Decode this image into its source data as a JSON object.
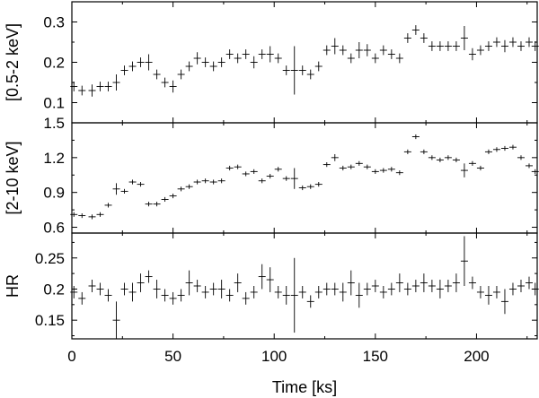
{
  "chart_data": {
    "type": "scatter",
    "x_axis": {
      "label": "Time [ks]",
      "range": [
        0,
        230
      ],
      "ticks": [
        0,
        50,
        100,
        150,
        200
      ],
      "tick_labels": [
        "0",
        "50",
        "100",
        "150",
        "200"
      ]
    },
    "panels": [
      {
        "id": "soft",
        "ylabel": "[0.5-2 keV]",
        "ylim": [
          0.05,
          0.35
        ],
        "yticks": [
          0.1,
          0.2,
          0.3
        ],
        "ytick_labels": [
          "0.1",
          "0.2",
          "0.3"
        ],
        "points": [
          [
            1,
            0.14,
            0.012
          ],
          [
            5,
            0.13,
            0.012
          ],
          [
            10,
            0.13,
            0.015
          ],
          [
            14,
            0.14,
            0.012
          ],
          [
            18,
            0.14,
            0.012
          ],
          [
            22,
            0.15,
            0.02
          ],
          [
            26,
            0.18,
            0.012
          ],
          [
            30,
            0.19,
            0.012
          ],
          [
            34,
            0.2,
            0.012
          ],
          [
            38,
            0.2,
            0.02
          ],
          [
            42,
            0.17,
            0.012
          ],
          [
            46,
            0.15,
            0.012
          ],
          [
            50,
            0.14,
            0.015
          ],
          [
            54,
            0.17,
            0.012
          ],
          [
            58,
            0.19,
            0.012
          ],
          [
            62,
            0.21,
            0.015
          ],
          [
            66,
            0.2,
            0.012
          ],
          [
            70,
            0.19,
            0.012
          ],
          [
            74,
            0.2,
            0.012
          ],
          [
            78,
            0.22,
            0.012
          ],
          [
            82,
            0.21,
            0.012
          ],
          [
            86,
            0.22,
            0.012
          ],
          [
            90,
            0.2,
            0.015
          ],
          [
            94,
            0.22,
            0.012
          ],
          [
            98,
            0.22,
            0.02
          ],
          [
            102,
            0.21,
            0.012
          ],
          [
            106,
            0.18,
            0.012
          ],
          [
            110,
            0.18,
            0.06
          ],
          [
            114,
            0.18,
            0.012
          ],
          [
            118,
            0.17,
            0.012
          ],
          [
            122,
            0.19,
            0.012
          ],
          [
            126,
            0.23,
            0.012
          ],
          [
            130,
            0.24,
            0.02
          ],
          [
            134,
            0.23,
            0.012
          ],
          [
            138,
            0.21,
            0.012
          ],
          [
            142,
            0.23,
            0.02
          ],
          [
            146,
            0.23,
            0.015
          ],
          [
            150,
            0.21,
            0.012
          ],
          [
            154,
            0.23,
            0.012
          ],
          [
            158,
            0.22,
            0.012
          ],
          [
            162,
            0.21,
            0.012
          ],
          [
            166,
            0.26,
            0.012
          ],
          [
            170,
            0.28,
            0.012
          ],
          [
            174,
            0.26,
            0.012
          ],
          [
            178,
            0.24,
            0.012
          ],
          [
            182,
            0.24,
            0.012
          ],
          [
            186,
            0.24,
            0.012
          ],
          [
            190,
            0.24,
            0.012
          ],
          [
            194,
            0.26,
            0.03
          ],
          [
            198,
            0.22,
            0.015
          ],
          [
            202,
            0.23,
            0.012
          ],
          [
            206,
            0.24,
            0.012
          ],
          [
            210,
            0.25,
            0.012
          ],
          [
            214,
            0.24,
            0.015
          ],
          [
            218,
            0.25,
            0.012
          ],
          [
            222,
            0.24,
            0.012
          ],
          [
            226,
            0.25,
            0.012
          ],
          [
            229,
            0.24,
            0.012
          ]
        ]
      },
      {
        "id": "hard",
        "ylabel": "[2-10 keV]",
        "ylim": [
          0.55,
          1.5
        ],
        "yticks": [
          0.6,
          0.9,
          1.2,
          1.5
        ],
        "ytick_labels": [
          "0.6",
          "0.9",
          "1.2",
          "1.5"
        ],
        "points": [
          [
            1,
            0.71,
            0.02
          ],
          [
            5,
            0.7,
            0.02
          ],
          [
            10,
            0.69,
            0.02
          ],
          [
            14,
            0.71,
            0.02
          ],
          [
            18,
            0.79,
            0.02
          ],
          [
            22,
            0.93,
            0.05
          ],
          [
            26,
            0.91,
            0.02
          ],
          [
            30,
            0.99,
            0.02
          ],
          [
            34,
            0.97,
            0.02
          ],
          [
            38,
            0.8,
            0.02
          ],
          [
            42,
            0.8,
            0.02
          ],
          [
            46,
            0.84,
            0.02
          ],
          [
            50,
            0.87,
            0.02
          ],
          [
            54,
            0.93,
            0.02
          ],
          [
            58,
            0.95,
            0.02
          ],
          [
            62,
            0.99,
            0.02
          ],
          [
            66,
            1.0,
            0.02
          ],
          [
            70,
            0.99,
            0.02
          ],
          [
            74,
            1.0,
            0.02
          ],
          [
            78,
            1.11,
            0.02
          ],
          [
            82,
            1.12,
            0.02
          ],
          [
            86,
            1.06,
            0.02
          ],
          [
            90,
            1.08,
            0.02
          ],
          [
            94,
            1.0,
            0.02
          ],
          [
            98,
            1.04,
            0.02
          ],
          [
            102,
            1.1,
            0.02
          ],
          [
            106,
            1.02,
            0.02
          ],
          [
            110,
            1.02,
            0.09
          ],
          [
            114,
            0.94,
            0.02
          ],
          [
            118,
            0.95,
            0.02
          ],
          [
            122,
            0.97,
            0.02
          ],
          [
            126,
            1.14,
            0.02
          ],
          [
            130,
            1.2,
            0.03
          ],
          [
            134,
            1.11,
            0.02
          ],
          [
            138,
            1.12,
            0.02
          ],
          [
            142,
            1.15,
            0.02
          ],
          [
            146,
            1.12,
            0.02
          ],
          [
            150,
            1.08,
            0.02
          ],
          [
            154,
            1.09,
            0.02
          ],
          [
            158,
            1.1,
            0.02
          ],
          [
            162,
            1.07,
            0.02
          ],
          [
            166,
            1.25,
            0.02
          ],
          [
            170,
            1.38,
            0.02
          ],
          [
            174,
            1.25,
            0.02
          ],
          [
            178,
            1.2,
            0.02
          ],
          [
            182,
            1.18,
            0.02
          ],
          [
            186,
            1.2,
            0.02
          ],
          [
            190,
            1.18,
            0.02
          ],
          [
            194,
            1.09,
            0.06
          ],
          [
            198,
            1.15,
            0.02
          ],
          [
            202,
            1.11,
            0.02
          ],
          [
            206,
            1.25,
            0.02
          ],
          [
            210,
            1.27,
            0.02
          ],
          [
            214,
            1.28,
            0.02
          ],
          [
            218,
            1.29,
            0.02
          ],
          [
            222,
            1.2,
            0.02
          ],
          [
            226,
            1.13,
            0.02
          ],
          [
            229,
            1.08,
            0.02
          ]
        ]
      },
      {
        "id": "hr",
        "ylabel": "HR",
        "ylim": [
          0.12,
          0.29
        ],
        "yticks": [
          0.15,
          0.2,
          0.25
        ],
        "ytick_labels": [
          "0.15",
          "0.2",
          "0.25"
        ],
        "points": [
          [
            1,
            0.195,
            0.01
          ],
          [
            5,
            0.185,
            0.01
          ],
          [
            10,
            0.205,
            0.01
          ],
          [
            14,
            0.2,
            0.01
          ],
          [
            18,
            0.19,
            0.01
          ],
          [
            22,
            0.15,
            0.03
          ],
          [
            26,
            0.2,
            0.01
          ],
          [
            30,
            0.195,
            0.015
          ],
          [
            34,
            0.21,
            0.015
          ],
          [
            38,
            0.22,
            0.01
          ],
          [
            42,
            0.2,
            0.015
          ],
          [
            46,
            0.19,
            0.01
          ],
          [
            50,
            0.185,
            0.01
          ],
          [
            54,
            0.19,
            0.01
          ],
          [
            58,
            0.21,
            0.02
          ],
          [
            62,
            0.205,
            0.01
          ],
          [
            66,
            0.195,
            0.01
          ],
          [
            70,
            0.2,
            0.01
          ],
          [
            74,
            0.2,
            0.015
          ],
          [
            78,
            0.19,
            0.01
          ],
          [
            82,
            0.21,
            0.015
          ],
          [
            86,
            0.185,
            0.01
          ],
          [
            90,
            0.195,
            0.01
          ],
          [
            94,
            0.22,
            0.02
          ],
          [
            98,
            0.215,
            0.02
          ],
          [
            102,
            0.195,
            0.01
          ],
          [
            106,
            0.19,
            0.015
          ],
          [
            110,
            0.19,
            0.06
          ],
          [
            114,
            0.195,
            0.01
          ],
          [
            118,
            0.18,
            0.01
          ],
          [
            122,
            0.195,
            0.01
          ],
          [
            126,
            0.2,
            0.01
          ],
          [
            130,
            0.2,
            0.01
          ],
          [
            134,
            0.195,
            0.015
          ],
          [
            138,
            0.21,
            0.02
          ],
          [
            142,
            0.19,
            0.02
          ],
          [
            146,
            0.2,
            0.01
          ],
          [
            150,
            0.205,
            0.01
          ],
          [
            154,
            0.195,
            0.01
          ],
          [
            158,
            0.2,
            0.01
          ],
          [
            162,
            0.21,
            0.015
          ],
          [
            166,
            0.2,
            0.01
          ],
          [
            170,
            0.205,
            0.01
          ],
          [
            174,
            0.21,
            0.015
          ],
          [
            178,
            0.205,
            0.01
          ],
          [
            182,
            0.2,
            0.015
          ],
          [
            186,
            0.205,
            0.01
          ],
          [
            190,
            0.21,
            0.015
          ],
          [
            194,
            0.245,
            0.04
          ],
          [
            198,
            0.21,
            0.01
          ],
          [
            202,
            0.195,
            0.01
          ],
          [
            206,
            0.19,
            0.015
          ],
          [
            210,
            0.195,
            0.01
          ],
          [
            214,
            0.18,
            0.02
          ],
          [
            218,
            0.2,
            0.01
          ],
          [
            222,
            0.205,
            0.01
          ],
          [
            226,
            0.21,
            0.01
          ],
          [
            229,
            0.2,
            0.01
          ]
        ]
      }
    ],
    "colors": {
      "marker": "#000000",
      "axis": "#000000"
    }
  }
}
